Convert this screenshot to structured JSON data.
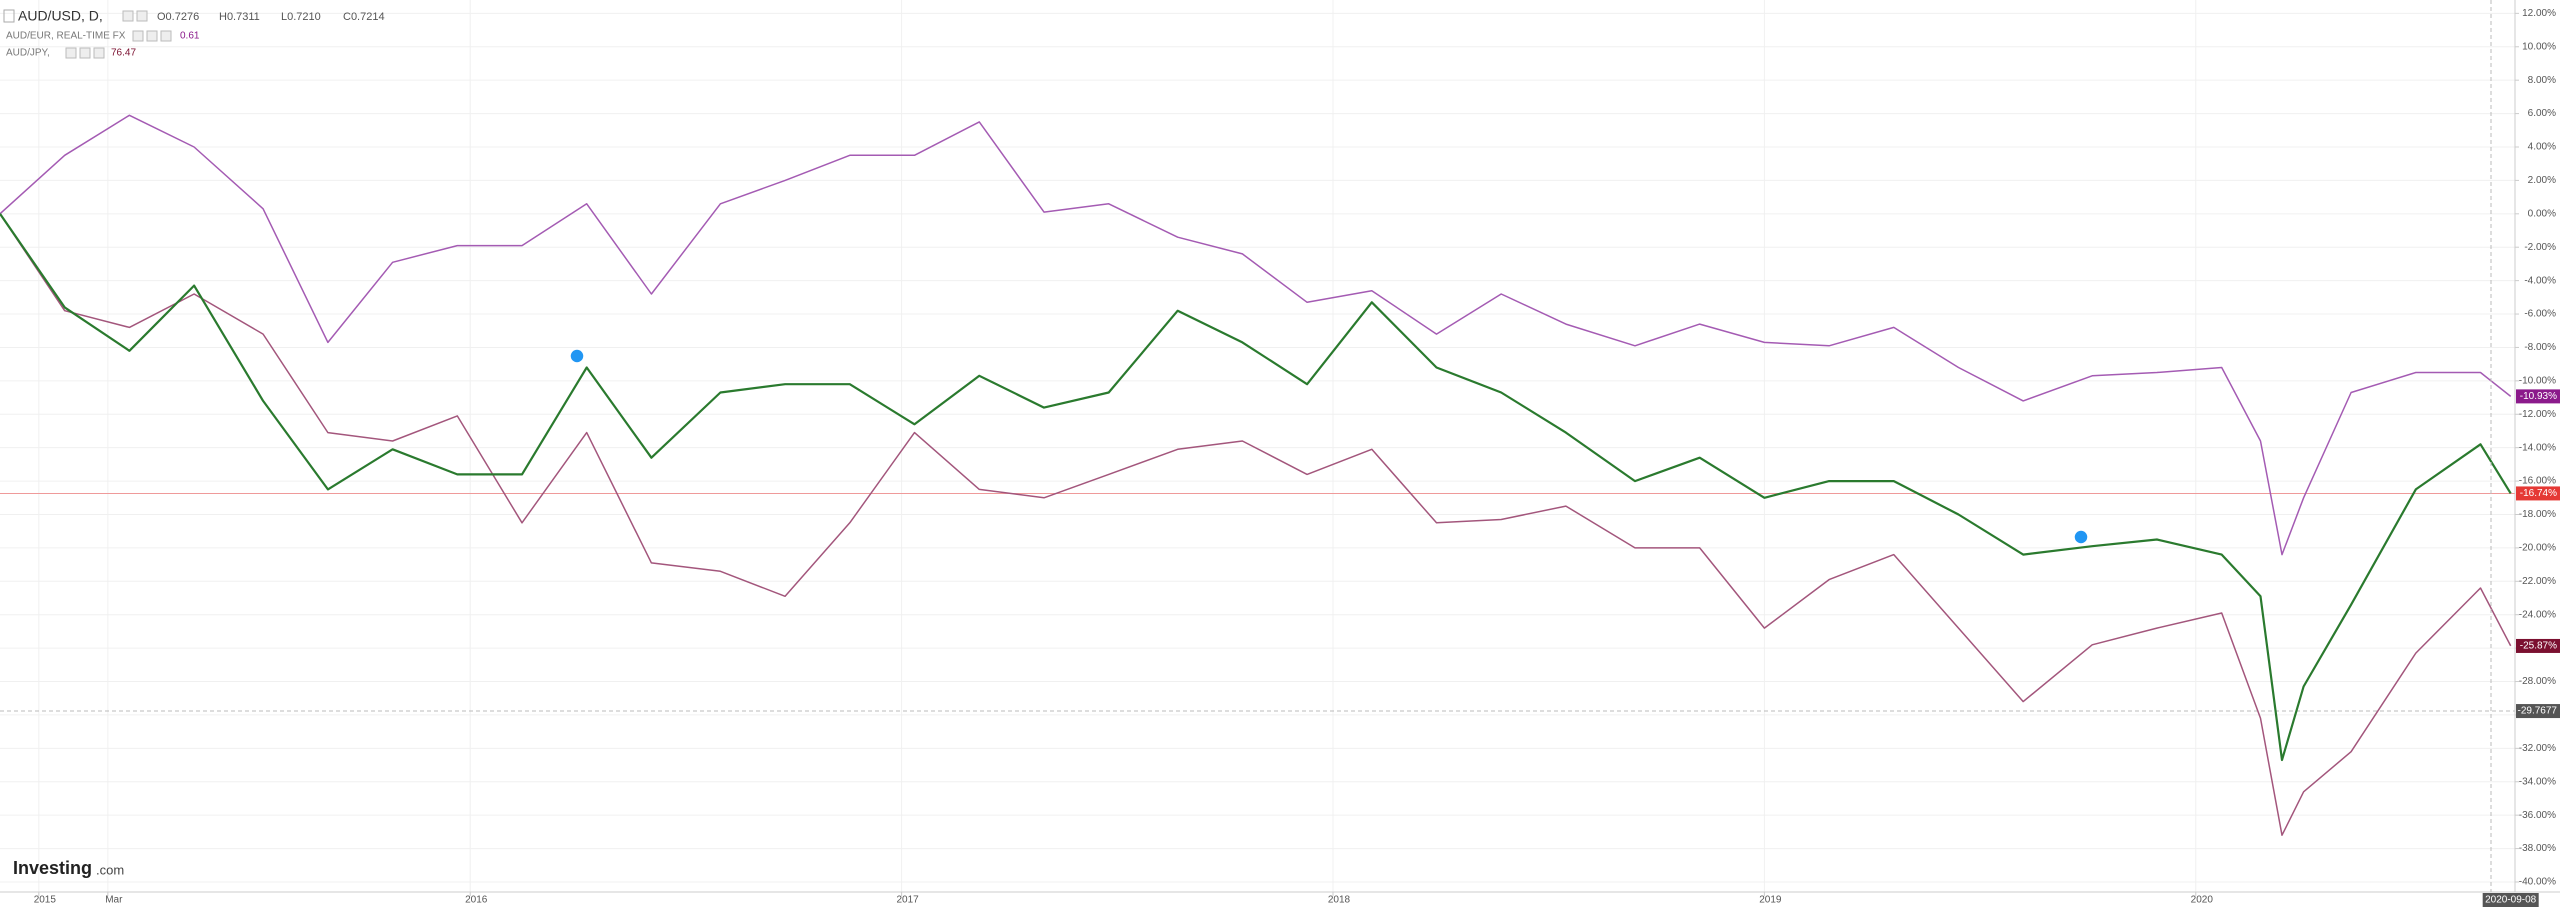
{
  "chart_data": {
    "type": "line",
    "x": [
      2014.91,
      2015.06,
      2015.21,
      2015.36,
      2015.52,
      2015.67,
      2015.82,
      2015.97,
      2016.12,
      2016.27,
      2016.42,
      2016.58,
      2016.73,
      2016.88,
      2017.03,
      2017.18,
      2017.33,
      2017.48,
      2017.64,
      2017.79,
      2017.94,
      2018.09,
      2018.24,
      2018.39,
      2018.54,
      2018.7,
      2018.85,
      2019.0,
      2019.15,
      2019.3,
      2019.45,
      2019.6,
      2019.76,
      2019.91,
      2020.06,
      2020.15,
      2020.2,
      2020.25,
      2020.36,
      2020.51,
      2020.66,
      2020.73
    ],
    "series": [
      {
        "name": "AUD/USD, D,",
        "color": "#2a7a2e",
        "label_color": "#e53935",
        "info": [
          "O0.7276",
          "H0.7311",
          "L0.7210",
          "C0.7214"
        ],
        "values": [
          0,
          -5.6,
          -8.2,
          -4.3,
          -11.2,
          -16.5,
          -14.1,
          -15.6,
          -15.6,
          -9.2,
          -14.6,
          -10.7,
          -10.2,
          -10.2,
          -12.6,
          -9.7,
          -11.6,
          -10.7,
          -5.8,
          -7.7,
          -10.2,
          -5.3,
          -9.2,
          -10.7,
          -13.1,
          -16.0,
          -14.6,
          -17.0,
          -16.0,
          -16.0,
          -18.0,
          -20.4,
          -19.9,
          -19.5,
          -20.4,
          -22.9,
          -32.7,
          -28.3,
          -23.4,
          -16.5,
          -13.8,
          -16.74
        ],
        "end_label": {
          "value": -16.74,
          "label": "-16.74%"
        }
      },
      {
        "name": "AUD/EUR, REAL-TIME FX",
        "color": "#a45bb3",
        "label_color": "#8b1a8b",
        "info": [
          0.61
        ],
        "values": [
          0,
          3.5,
          5.9,
          4.0,
          0.3,
          -7.7,
          -2.9,
          -1.9,
          -1.9,
          0.6,
          -4.8,
          0.6,
          2.0,
          3.5,
          3.5,
          5.5,
          0.1,
          0.6,
          -1.4,
          -2.4,
          -5.3,
          -4.6,
          -7.2,
          -4.8,
          -6.6,
          -7.9,
          -6.6,
          -7.7,
          -7.9,
          -6.8,
          -9.2,
          -11.2,
          -9.7,
          -9.5,
          -9.2,
          -13.6,
          -20.4,
          -17.0,
          -10.7,
          -9.5,
          -9.5,
          -10.93
        ],
        "end_label": {
          "value": -10.93,
          "label": "-10.93%"
        }
      },
      {
        "name": "AUD/JPY,",
        "color": "#a3567c",
        "label_color": "#7b1030",
        "info": [
          76.47
        ],
        "values": [
          0,
          -5.8,
          -6.8,
          -4.8,
          -7.2,
          -13.1,
          -13.6,
          -12.1,
          -18.5,
          -13.1,
          -20.9,
          -21.4,
          -22.9,
          -18.5,
          -13.1,
          -16.5,
          -17.0,
          -15.6,
          -14.1,
          -13.6,
          -15.6,
          -14.1,
          -18.5,
          -18.3,
          -17.5,
          -20.0,
          -20.0,
          -24.8,
          -21.9,
          -20.4,
          -24.8,
          -29.2,
          -25.8,
          -24.8,
          -23.9,
          -30.2,
          -37.2,
          -34.6,
          -32.2,
          -26.3,
          -22.4,
          -25.87
        ],
        "end_label": {
          "value": -25.87,
          "label": "-25.87%"
        }
      }
    ],
    "price_line_color": "#ef9a9a",
    "crosshair": {
      "value": -29.7677,
      "label": "-29.7677"
    },
    "current_date": {
      "value": 2020.73,
      "label": "2020-09-08"
    },
    "xlim": [
      2014.91,
      2020.74
    ],
    "xticks": [
      2015,
      {
        "value": 2015.16,
        "label": "Mar"
      },
      2016,
      2017,
      2018,
      2019,
      2020
    ],
    "ylim": [
      -40.6,
      12.8
    ],
    "yticks": [
      {
        "value": 12,
        "label": "12.00%"
      },
      {
        "value": 10,
        "label": "10.00%"
      },
      {
        "value": 8,
        "label": "8.00%"
      },
      {
        "value": 6,
        "label": "6.00%"
      },
      {
        "value": 4,
        "label": "4.00%"
      },
      {
        "value": 2,
        "label": "2.00%"
      },
      {
        "value": 0,
        "label": "0.00%"
      },
      {
        "value": -2,
        "label": "-2.00%"
      },
      {
        "value": -4,
        "label": "-4.00%"
      },
      {
        "value": -6,
        "label": "-6.00%"
      },
      {
        "value": -8,
        "label": "-8.00%"
      },
      {
        "value": -10,
        "label": "-10.00%"
      },
      {
        "value": -12,
        "label": "-12.00%"
      },
      {
        "value": -14,
        "label": "-14.00%"
      },
      {
        "value": -16,
        "label": "-16.00%"
      },
      {
        "value": -18,
        "label": "-18.00%"
      },
      {
        "value": -20,
        "label": "-20.00%"
      },
      {
        "value": -22,
        "label": "-22.00%"
      },
      {
        "value": -24,
        "label": "-24.00%"
      },
      {
        "value": -26,
        "label": "-26.00%"
      },
      {
        "value": -28,
        "label": "-28.00%"
      },
      {
        "value": -30,
        "label": "-30.00%"
      },
      {
        "value": -32,
        "label": "-32.00%"
      },
      {
        "value": -34,
        "label": "-34.00%"
      },
      {
        "value": -36,
        "label": "-36.00%"
      },
      {
        "value": -38,
        "label": "-38.00%"
      },
      {
        "value": -40,
        "label": "-40.00%"
      }
    ],
    "grid": true,
    "watermark": {
      "brand": "Investing",
      "domain": ".com"
    }
  }
}
